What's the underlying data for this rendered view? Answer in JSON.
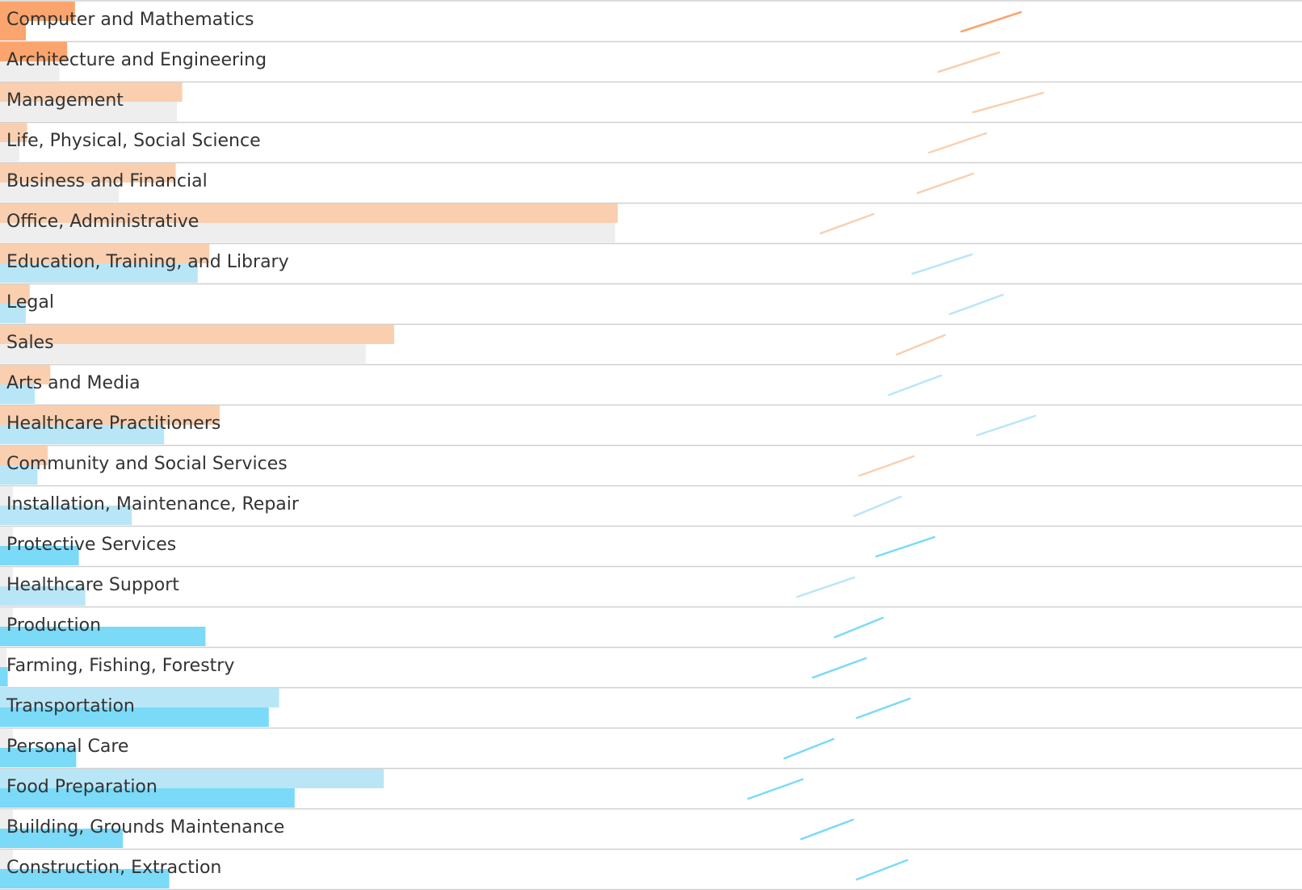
{
  "chart_data": {
    "type": "bar",
    "title": "",
    "xlabel": "",
    "ylabel": "",
    "grid": "horizontal row separators",
    "legend": "none",
    "colors": {
      "orange_strong": "#FBA46D",
      "orange_light": "#F9CFB0",
      "blue_strong": "#7ADAF8",
      "blue_light": "#B8E6F7",
      "gray": "#EEEEEE",
      "separator": "#D0D0D0"
    },
    "bar_xlim": [
      0,
      1000
    ],
    "slope_xlim": [
      0,
      1000
    ],
    "categories": [
      "Computer and Mathematics",
      "Architecture and Engineering",
      "Management",
      "Life, Physical, Social Science",
      "Business and Financial",
      "Office, Administrative",
      "Education, Training, and Library",
      "Legal",
      "Sales",
      "Arts and Media",
      "Healthcare Practitioners",
      "Community and Social Services",
      "Installation, Maintenance, Repair",
      "Protective Services",
      "Healthcare Support",
      "Production",
      "Farming, Fishing, Forestry",
      "Transportation",
      "Personal Care",
      "Food Preparation",
      "Building, Grounds Maintenance",
      "Construction, Extraction"
    ],
    "series": [
      {
        "values": [
          58,
          52,
          141,
          21,
          136,
          478,
          162,
          23,
          305,
          39,
          170,
          37,
          10,
          10,
          10,
          10,
          5,
          216,
          10,
          297,
          10,
          10
        ],
        "color_key": [
          "orange_strong",
          "orange_strong",
          "orange_light",
          "orange_light",
          "orange_light",
          "orange_light",
          "orange_light",
          "orange_light",
          "orange_light",
          "orange_light",
          "orange_light",
          "orange_light",
          "gray",
          "gray",
          "gray",
          "gray",
          "gray",
          "blue_light",
          "gray",
          "blue_light",
          "gray",
          "gray"
        ]
      },
      {
        "values": [
          20,
          46,
          137,
          15,
          92,
          476,
          153,
          20,
          283,
          27,
          127,
          29,
          102,
          61,
          66,
          159,
          6,
          208,
          59,
          228,
          95,
          131
        ],
        "color_key": [
          "orange_strong",
          "gray",
          "gray",
          "gray",
          "gray",
          "gray",
          "blue_light",
          "blue_light",
          "gray",
          "blue_light",
          "blue_light",
          "blue_light",
          "blue_light",
          "blue_strong",
          "blue_light",
          "blue_strong",
          "blue_strong",
          "blue_strong",
          "blue_strong",
          "blue_strong",
          "blue_strong",
          "blue_strong"
        ]
      }
    ],
    "slopes": {
      "start": [
        744,
        726,
        753,
        719,
        710,
        635,
        706,
        735,
        694,
        688,
        756,
        665,
        661,
        678,
        617,
        646,
        629,
        663,
        607,
        579,
        620,
        663
      ],
      "end": [
        790,
        773,
        807,
        763,
        753,
        676,
        752,
        776,
        731,
        728,
        801,
        707,
        697,
        723,
        661,
        683,
        670,
        704,
        645,
        621,
        660,
        702
      ],
      "color_key": [
        "orange_strong",
        "orange_light",
        "orange_light",
        "orange_light",
        "orange_light",
        "orange_light",
        "blue_light",
        "blue_light",
        "orange_light",
        "blue_light",
        "blue_light",
        "orange_light",
        "blue_light",
        "blue_strong",
        "blue_light",
        "blue_strong",
        "blue_strong",
        "blue_strong",
        "blue_strong",
        "blue_strong",
        "blue_strong",
        "blue_strong"
      ]
    }
  }
}
